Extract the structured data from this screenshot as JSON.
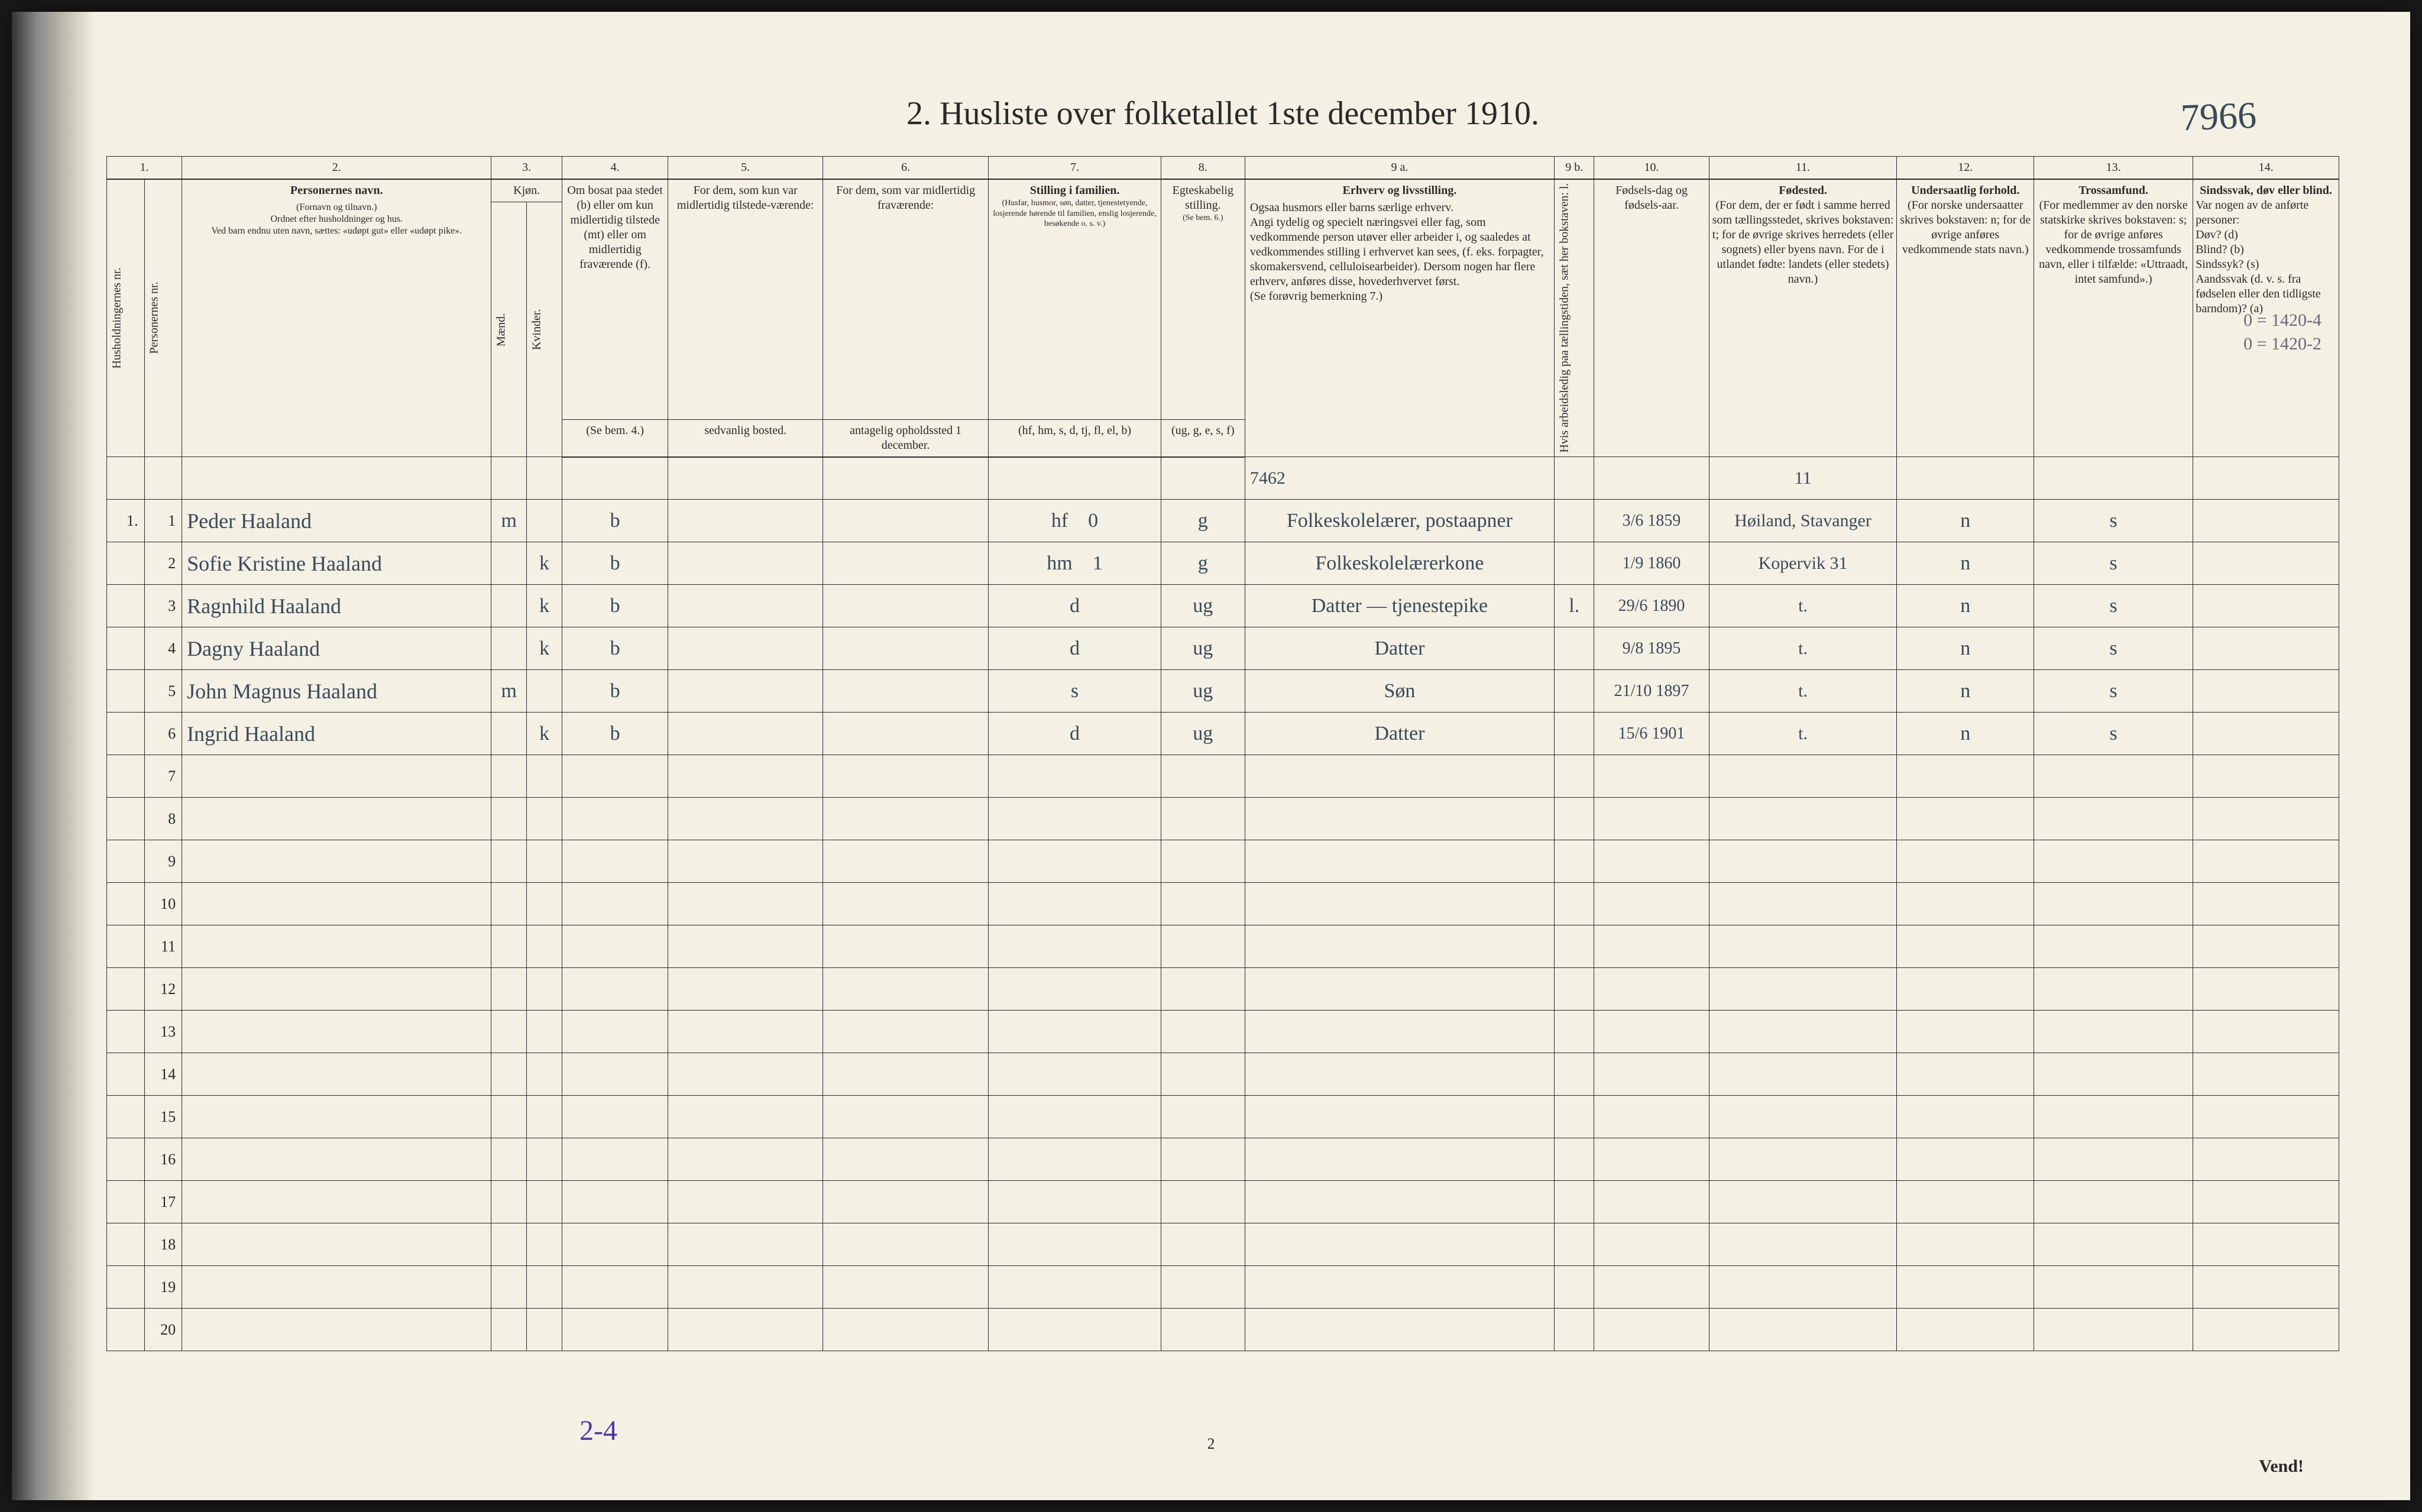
{
  "document": {
    "title": "2.  Husliste over folketallet 1ste december 1910.",
    "topright_handwritten": "7966",
    "page_number_bottom": "2",
    "vend_label": "Vend!",
    "footer_handwritten": "2-4",
    "margin_note_right_1": "0 = 1420-4",
    "margin_note_right_2": "0 = 1420-2",
    "colors": {
      "paper": "#f4f0e4",
      "ink": "#2a2a2a",
      "pencil": "#3a4a5a",
      "purple": "#4a3aa0",
      "background": "#1a1a1a"
    }
  },
  "columns": {
    "numbers": [
      "1.",
      "2.",
      "3.",
      "4.",
      "5.",
      "6.",
      "7.",
      "8.",
      "9 a.",
      "9 b.",
      "10.",
      "11.",
      "12.",
      "13.",
      "14."
    ],
    "c1a": "Husholdningernes nr.",
    "c1b": "Personernes nr.",
    "c2": {
      "header": "Personernes navn.",
      "sub": "(Fornavn og tilnavn.)\nOrdnet efter husholdninger og hus.\nVed barn endnu uten navn, sættes: «udøpt gut» eller «udøpt pike»."
    },
    "c3": {
      "header": "Kjøn.",
      "m": "Mænd.",
      "k": "Kvinder.",
      "mk": "m.  k."
    },
    "c4": {
      "header": "Om bosat paa stedet (b) eller om kun midlertidig tilstede (mt) eller om midlertidig fraværende (f).",
      "sub": "(Se bem. 4.)"
    },
    "c5": {
      "header": "For dem, som kun var midlertidig tilstede-værende:",
      "sub": "sedvanlig bosted."
    },
    "c6": {
      "header": "For dem, som var midlertidig fraværende:",
      "sub": "antagelig opholdssted 1 december."
    },
    "c7": {
      "header": "Stilling i familien.",
      "sub": "(Husfar, husmor, søn, datter, tjenestetyende, losjerende hørende til familien, enslig losjerende, besøkende o. s. v.)",
      "sub2": "(hf, hm, s, d, tj, fl, el, b)"
    },
    "c8": {
      "header": "Egteskabelig stilling.",
      "sub": "(Se bem. 6.)",
      "sub2": "(ug, g, e, s, f)"
    },
    "c9a": {
      "header": "Erhverv og livsstilling.",
      "sub": "Ogsaa husmors eller barns særlige erhverv.\nAngi tydelig og specielt næringsvei eller fag, som vedkommende person utøver eller arbeider i, og saaledes at vedkommendes stilling i erhvervet kan sees, (f. eks. forpagter, skomakersvend, celluloisearbeider). Dersom nogen har flere erhverv, anføres disse, hovederhvervet først.\n(Se forøvrig bemerkning 7.)"
    },
    "c9a_top_hand": "7462",
    "c9b": {
      "header": "Hvis arbeidsledig paa tællingstiden, sæt her bokstaven: l."
    },
    "c10": {
      "header": "Fødsels-dag og fødsels-aar."
    },
    "c11": {
      "header": "Fødested.",
      "sub": "(For dem, der er født i samme herred som tællingsstedet, skrives bokstaven: t; for de øvrige skrives herredets (eller sognets) eller byens navn. For de i utlandet fødte: landets (eller stedets) navn.)",
      "top_hand": "11"
    },
    "c12": {
      "header": "Undersaatlig forhold.",
      "sub": "(For norske undersaatter skrives bokstaven: n; for de øvrige anføres vedkommende stats navn.)"
    },
    "c13": {
      "header": "Trossamfund.",
      "sub": "(For medlemmer av den norske statskirke skrives bokstaven: s; for de øvrige anføres vedkommende trossamfunds navn, eller i tilfælde: «Uttraadt, intet samfund».)"
    },
    "c14": {
      "header": "Sindssvak, døv eller blind.",
      "sub": "Var nogen av de anførte personer:\nDøv?      (d)\nBlind?    (b)\nSindssyk? (s)\nAandssvak (d. v. s. fra fødselen eller den tidligste barndom)? (a)"
    }
  },
  "rows": [
    {
      "hh": "1.",
      "pn": "1",
      "name": "Peder Haaland",
      "sex": "m",
      "bosat": "b",
      "c7a": "hf",
      "c7b": "0",
      "c8": "g",
      "c9a": "Folkeskolelærer, postaapner",
      "c10": "3/6 1859",
      "c11": "Høiland, Stavanger",
      "c12": "n",
      "c13": "s"
    },
    {
      "hh": "",
      "pn": "2",
      "name": "Sofie Kristine Haaland",
      "sex": "k",
      "bosat": "b",
      "c7a": "hm",
      "c7b": "1",
      "c8": "g",
      "c9a": "Folkeskolelærerkone",
      "c10": "1/9 1860",
      "c11": "Kopervik 31",
      "c12": "n",
      "c13": "s"
    },
    {
      "hh": "",
      "pn": "3",
      "name": "Ragnhild Haaland",
      "sex": "k",
      "bosat": "b",
      "c7a": "d",
      "c8": "ug",
      "c9a": "Datter — tjenestepike",
      "c9b": "l.",
      "c10": "29/6 1890",
      "c11": "t.",
      "c12": "n",
      "c13": "s"
    },
    {
      "hh": "",
      "pn": "4",
      "name": "Dagny Haaland",
      "sex": "k",
      "bosat": "b",
      "c7a": "d",
      "c8": "ug",
      "c9a": "Datter",
      "c10": "9/8 1895",
      "c11": "t.",
      "c12": "n",
      "c13": "s"
    },
    {
      "hh": "",
      "pn": "5",
      "name": "John Magnus Haaland",
      "sex": "m",
      "bosat": "b",
      "c7a": "s",
      "c8": "ug",
      "c9a": "Søn",
      "c10": "21/10 1897",
      "c11": "t.",
      "c12": "n",
      "c13": "s"
    },
    {
      "hh": "",
      "pn": "6",
      "name": "Ingrid Haaland",
      "sex": "k",
      "bosat": "b",
      "c7a": "d",
      "c8": "ug",
      "c9a": "Datter",
      "c10": "15/6 1901",
      "c11": "t.",
      "c12": "n",
      "c13": "s"
    }
  ],
  "empty_row_count": 14,
  "layout": {
    "col_widths_pct": [
      1.7,
      1.7,
      14,
      1.6,
      1.6,
      4.8,
      7,
      7.5,
      7.8,
      3.8,
      14,
      1.8,
      5.2,
      8.5,
      6.2,
      7.2,
      6.6
    ]
  }
}
